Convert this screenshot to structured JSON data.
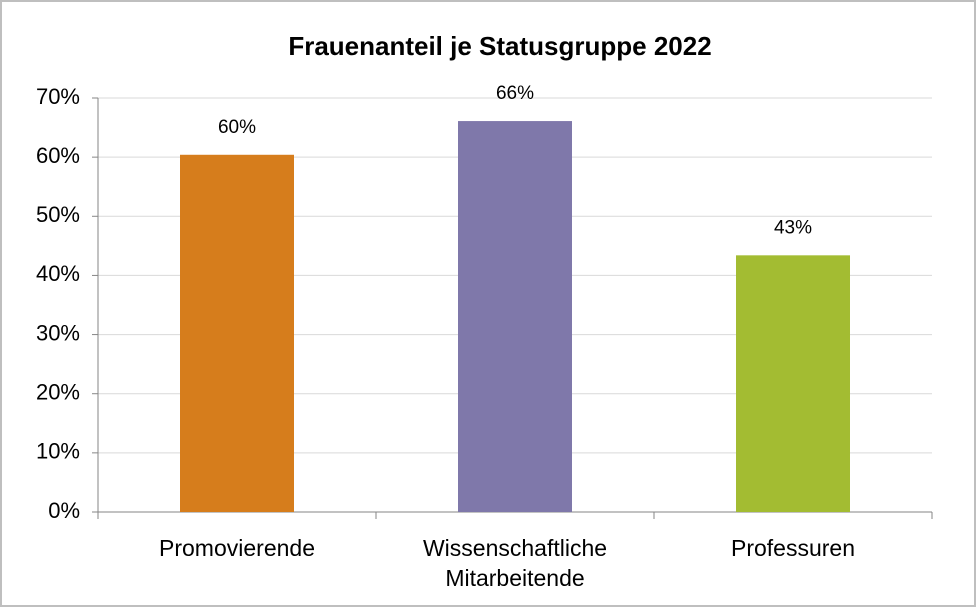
{
  "chart_data": {
    "type": "bar",
    "title": "Frauenanteil je Statusgruppe 2022",
    "categories": [
      "Promovierende",
      "Wissenschaftliche\nMitarbeitende",
      "Professuren"
    ],
    "values": [
      60.4,
      66.1,
      43.4
    ],
    "value_labels": [
      "60%",
      "66%",
      "43%"
    ],
    "colors": [
      "#d67d1c",
      "#7f78aa",
      "#a3bc32"
    ],
    "ylim": [
      0,
      70
    ],
    "yticks": [
      {
        "value": 0,
        "label": "0%"
      },
      {
        "value": 10,
        "label": "10%"
      },
      {
        "value": 20,
        "label": "20%"
      },
      {
        "value": 30,
        "label": "30%"
      },
      {
        "value": 40,
        "label": "40%"
      },
      {
        "value": 50,
        "label": "50%"
      },
      {
        "value": 60,
        "label": "60%"
      },
      {
        "value": 70,
        "label": "70%"
      }
    ],
    "grid": true
  }
}
